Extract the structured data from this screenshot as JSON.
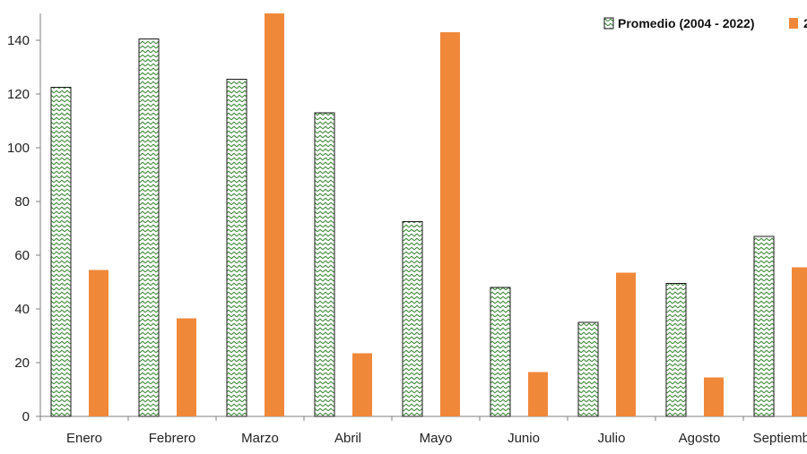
{
  "chart_data": {
    "type": "bar",
    "title": "",
    "xlabel": "",
    "ylabel": "",
    "ylim": [
      0,
      150
    ],
    "yticks": [
      0,
      20,
      40,
      60,
      80,
      100,
      120,
      140
    ],
    "grid": false,
    "legend_position": "top-right",
    "categories": [
      "Enero",
      "Febrero",
      "Marzo",
      "Abril",
      "Mayo",
      "Junio",
      "Julio",
      "Agosto",
      "Septiembre"
    ],
    "series": [
      {
        "name": "Promedio (2004 - 2022)",
        "legend_label": "Promedio (2004 - 2022)",
        "color": "#a9d9a0",
        "pattern": "zigzag-hatch",
        "values": [
          122.5,
          140.5,
          125.5,
          113,
          72.5,
          48,
          35,
          49.5,
          67
        ]
      },
      {
        "legend_label": "2",
        "color": "#f0883a",
        "values": [
          54.5,
          36.5,
          150,
          23.5,
          143,
          16.5,
          53.5,
          14.5,
          55.5
        ]
      }
    ]
  }
}
